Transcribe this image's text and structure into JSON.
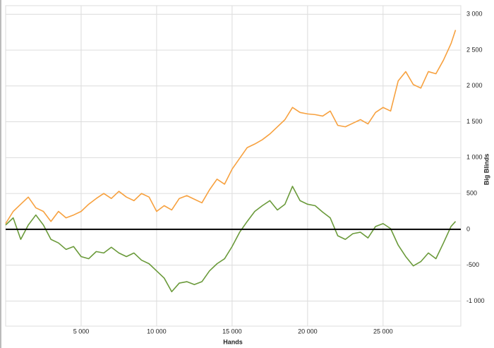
{
  "chart_data": {
    "type": "line",
    "x_label": "Hands",
    "y_label": "Big Blinds",
    "x": [
      0,
      500,
      1000,
      1500,
      2000,
      2500,
      3000,
      3500,
      4000,
      4500,
      5000,
      5500,
      6000,
      6500,
      7000,
      7500,
      8000,
      8500,
      9000,
      9500,
      10000,
      10500,
      11000,
      11500,
      12000,
      12500,
      13000,
      13500,
      14000,
      14500,
      15000,
      15500,
      16000,
      16500,
      17000,
      17500,
      18000,
      18500,
      19000,
      19500,
      20000,
      20500,
      21000,
      21500,
      22000,
      22500,
      23000,
      23500,
      24000,
      24500,
      25000,
      25500,
      26000,
      26500,
      27000,
      27500,
      28000,
      28500,
      29000,
      29500,
      29800
    ],
    "series": [
      {
        "name": "Orange",
        "color": "#f7a13f",
        "values": [
          80,
          250,
          350,
          450,
          300,
          250,
          110,
          250,
          160,
          200,
          250,
          350,
          430,
          500,
          430,
          530,
          450,
          400,
          500,
          450,
          250,
          330,
          270,
          430,
          470,
          420,
          370,
          550,
          700,
          630,
          840,
          990,
          1140,
          1190,
          1250,
          1330,
          1430,
          1530,
          1700,
          1630,
          1610,
          1600,
          1580,
          1650,
          1450,
          1430,
          1480,
          1530,
          1470,
          1630,
          1700,
          1650,
          2070,
          2200,
          2020,
          1970,
          2200,
          2170,
          2360,
          2590,
          2780
        ]
      },
      {
        "name": "Green",
        "color": "#6a9a3a",
        "values": [
          60,
          160,
          -140,
          60,
          200,
          60,
          -140,
          -190,
          -280,
          -240,
          -380,
          -410,
          -310,
          -330,
          -250,
          -330,
          -380,
          -330,
          -430,
          -480,
          -580,
          -680,
          -870,
          -750,
          -730,
          -770,
          -730,
          -580,
          -480,
          -410,
          -240,
          -40,
          110,
          250,
          330,
          400,
          270,
          350,
          600,
          400,
          350,
          330,
          240,
          160,
          -90,
          -140,
          -60,
          -40,
          -120,
          40,
          80,
          10,
          -220,
          -380,
          -510,
          -450,
          -330,
          -410,
          -190,
          40,
          110
        ]
      }
    ],
    "xlim": [
      0,
      30150
    ],
    "xticks": [
      {
        "value": 5000,
        "label": "5 000"
      },
      {
        "value": 10000,
        "label": "10 000"
      },
      {
        "value": 15000,
        "label": "15 000"
      },
      {
        "value": 20000,
        "label": "20 000"
      },
      {
        "value": 25000,
        "label": "25 000"
      }
    ],
    "ylim": [
      -1350,
      3120
    ],
    "yticks": [
      {
        "value": 3000,
        "label": "3 000"
      },
      {
        "value": 2500,
        "label": "2 500"
      },
      {
        "value": 2000,
        "label": "2 000"
      },
      {
        "value": 1500,
        "label": "1 500"
      },
      {
        "value": 1000,
        "label": "1 000"
      },
      500,
      0,
      -500,
      {
        "value": -1000,
        "label": "-1 000"
      }
    ],
    "grid": true
  }
}
